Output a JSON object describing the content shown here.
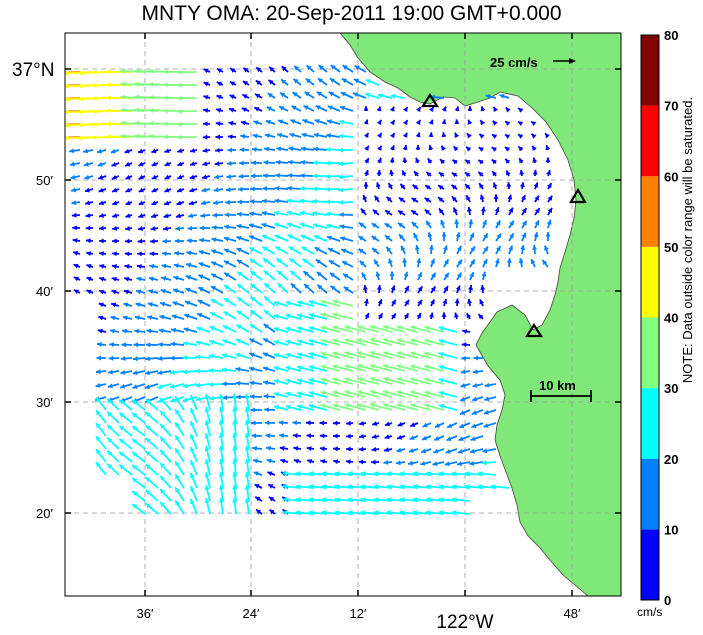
{
  "title": "MNTY OMA: 20-Sep-2011 19:00 GMT+0.000",
  "axes": {
    "lat_ticks": [
      "37°N",
      "50′",
      "40′",
      "30′",
      "20′"
    ],
    "lon_ticks": [
      "36′",
      "24′",
      "12′",
      "122°W",
      "48′"
    ]
  },
  "scale": {
    "velocity_label": "25 cm/s",
    "distance_label": "10 km"
  },
  "colorbar": {
    "ticks": [
      "0",
      "10",
      "20",
      "30",
      "40",
      "50",
      "60",
      "70",
      "80"
    ],
    "unit": "cm/s",
    "note": "NOTE: Data outside color range will be saturated.",
    "colors": [
      "#0000ff",
      "#0080ff",
      "#00ffff",
      "#80ff80",
      "#ffff00",
      "#ff8000",
      "#ff0000",
      "#800000"
    ]
  },
  "stations": [
    "triangle-marker",
    "triangle-marker",
    "triangle-marker"
  ],
  "colors": {
    "land": "#80e878",
    "grid": "#9a9a9a"
  }
}
